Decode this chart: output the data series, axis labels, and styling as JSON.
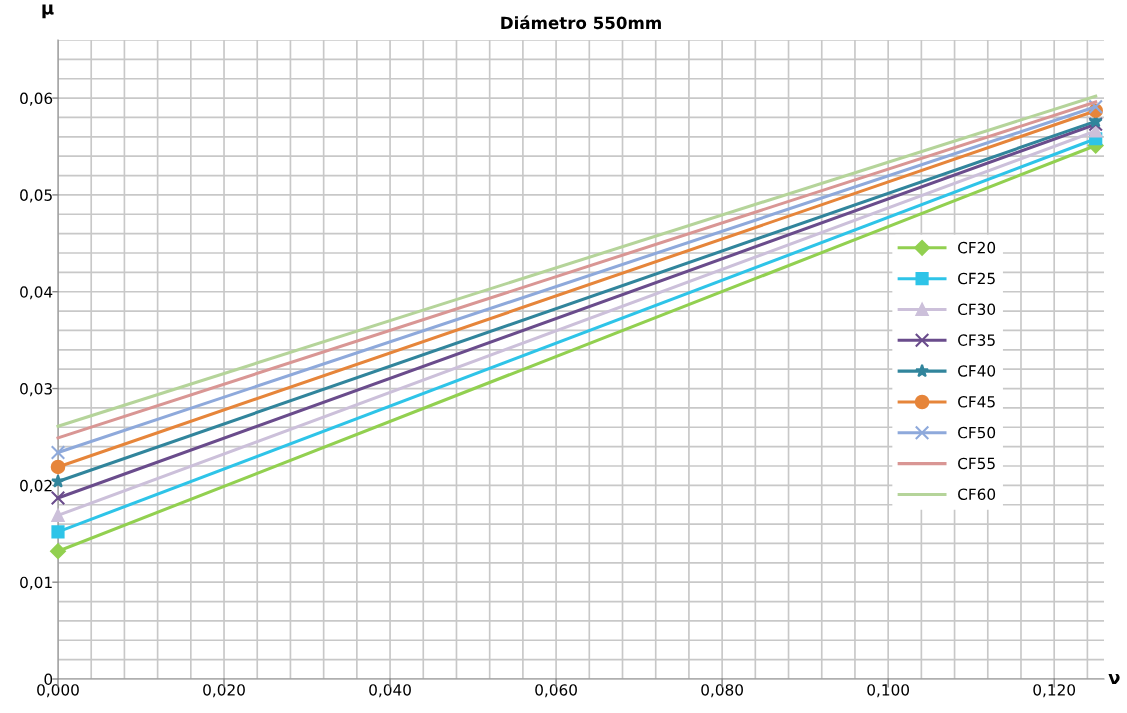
{
  "chart_data": {
    "type": "line",
    "title": "Diámetro 550mm",
    "xlabel": "ν",
    "ylabel": "μ",
    "x": [
      0.0,
      0.125
    ],
    "series": [
      {
        "name": "CF20",
        "color": "#92d050",
        "marker": "diamond",
        "values": [
          0.0132,
          0.0551
        ]
      },
      {
        "name": "CF25",
        "color": "#2ec4e8",
        "marker": "square",
        "values": [
          0.0152,
          0.0558
        ]
      },
      {
        "name": "CF30",
        "color": "#ccc0da",
        "marker": "triangle",
        "values": [
          0.0169,
          0.0566
        ]
      },
      {
        "name": "CF35",
        "color": "#6a4c8c",
        "marker": "cross",
        "values": [
          0.0187,
          0.0573
        ]
      },
      {
        "name": "CF40",
        "color": "#31859c",
        "marker": "star",
        "values": [
          0.0204,
          0.0576
        ]
      },
      {
        "name": "CF45",
        "color": "#e6853a",
        "marker": "circle",
        "values": [
          0.0219,
          0.0587
        ]
      },
      {
        "name": "CF50",
        "color": "#8ea9db",
        "marker": "cross",
        "values": [
          0.0234,
          0.0591
        ]
      },
      {
        "name": "CF55",
        "color": "#d99694",
        "marker": "none",
        "values": [
          0.0249,
          0.0596
        ]
      },
      {
        "name": "CF60",
        "color": "#b5d49a",
        "marker": "none",
        "values": [
          0.0261,
          0.0602
        ]
      }
    ],
    "xlim": [
      0,
      0.126
    ],
    "ylim": [
      0,
      0.066
    ],
    "xticks": [
      {
        "value": 0,
        "label": "0,000"
      },
      {
        "value": 0.004,
        "label": null
      },
      {
        "value": 0.008,
        "label": null
      },
      {
        "value": 0.012,
        "label": null
      },
      {
        "value": 0.016,
        "label": null
      },
      {
        "value": 0.02,
        "label": "0,020"
      },
      {
        "value": 0.024,
        "label": null
      },
      {
        "value": 0.028,
        "label": null
      },
      {
        "value": 0.032,
        "label": null
      },
      {
        "value": 0.036,
        "label": null
      },
      {
        "value": 0.04,
        "label": "0,040"
      },
      {
        "value": 0.044,
        "label": null
      },
      {
        "value": 0.048,
        "label": null
      },
      {
        "value": 0.052,
        "label": null
      },
      {
        "value": 0.056,
        "label": null
      },
      {
        "value": 0.06,
        "label": "0,060"
      },
      {
        "value": 0.064,
        "label": null
      },
      {
        "value": 0.068,
        "label": null
      },
      {
        "value": 0.072,
        "label": null
      },
      {
        "value": 0.076,
        "label": null
      },
      {
        "value": 0.08,
        "label": "0,080"
      },
      {
        "value": 0.084,
        "label": null
      },
      {
        "value": 0.088,
        "label": null
      },
      {
        "value": 0.092,
        "label": null
      },
      {
        "value": 0.096,
        "label": null
      },
      {
        "value": 0.1,
        "label": "0,100"
      },
      {
        "value": 0.104,
        "label": null
      },
      {
        "value": 0.108,
        "label": null
      },
      {
        "value": 0.112,
        "label": null
      },
      {
        "value": 0.116,
        "label": null
      },
      {
        "value": 0.12,
        "label": "0,120"
      },
      {
        "value": 0.124,
        "label": null
      }
    ],
    "yticks": [
      0,
      {
        "value": 0.002,
        "label": null
      },
      {
        "value": 0.004,
        "label": null
      },
      {
        "value": 0.006,
        "label": null
      },
      {
        "value": 0.008,
        "label": null
      },
      {
        "value": 0.01,
        "label": "0,01"
      },
      {
        "value": 0.012,
        "label": null
      },
      {
        "value": 0.014,
        "label": null
      },
      {
        "value": 0.016,
        "label": null
      },
      {
        "value": 0.018,
        "label": null
      },
      {
        "value": 0.02,
        "label": "0,02"
      },
      {
        "value": 0.022,
        "label": null
      },
      {
        "value": 0.024,
        "label": null
      },
      {
        "value": 0.026,
        "label": null
      },
      {
        "value": 0.028,
        "label": null
      },
      {
        "value": 0.03,
        "label": "0,03"
      },
      {
        "value": 0.032,
        "label": null
      },
      {
        "value": 0.034,
        "label": null
      },
      {
        "value": 0.036,
        "label": null
      },
      {
        "value": 0.038,
        "label": null
      },
      {
        "value": 0.04,
        "label": "0,04"
      },
      {
        "value": 0.042,
        "label": null
      },
      {
        "value": 0.044,
        "label": null
      },
      {
        "value": 0.046,
        "label": null
      },
      {
        "value": 0.048,
        "label": null
      },
      {
        "value": 0.05,
        "label": "0,05"
      },
      {
        "value": 0.052,
        "label": null
      },
      {
        "value": 0.054,
        "label": null
      },
      {
        "value": 0.056,
        "label": null
      },
      {
        "value": 0.058,
        "label": null
      },
      {
        "value": 0.06,
        "label": "0,06"
      },
      {
        "value": 0.062,
        "label": null
      },
      {
        "value": 0.064,
        "label": null
      },
      {
        "value": 0.066,
        "label": null
      }
    ],
    "grid": true,
    "legend": "right"
  }
}
